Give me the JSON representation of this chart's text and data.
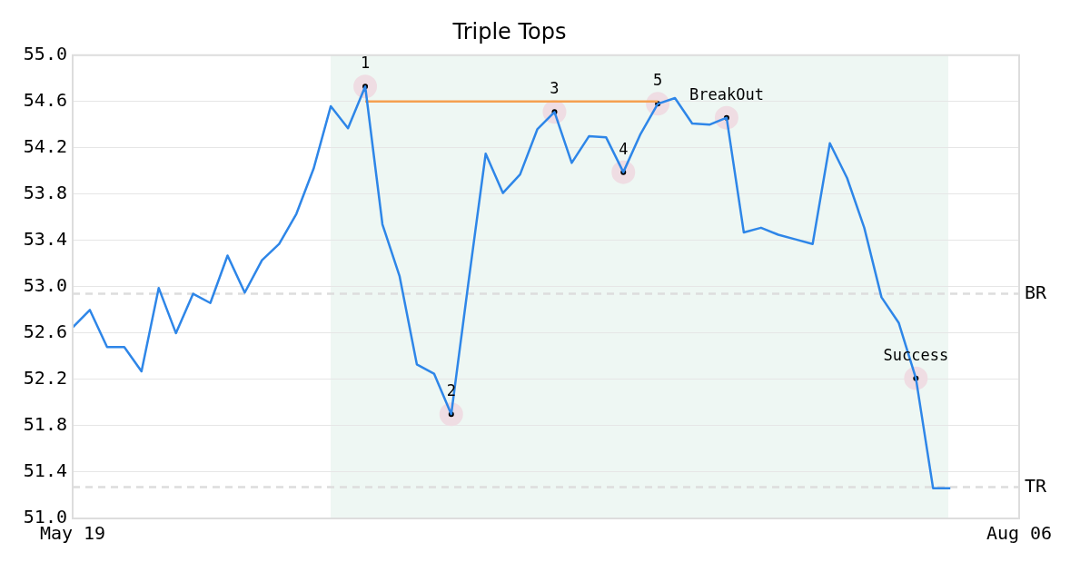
{
  "chart_data": {
    "type": "line",
    "title": "Triple Tops",
    "categories": [
      "May 19",
      null,
      null,
      null,
      null,
      null,
      null,
      null,
      null,
      null,
      null,
      null,
      null,
      null,
      null,
      null,
      null,
      null,
      null,
      null,
      null,
      null,
      null,
      null,
      null,
      null,
      null,
      null,
      null,
      null,
      null,
      null,
      null,
      null,
      null,
      null,
      null,
      null,
      null,
      null,
      null,
      null,
      null,
      null,
      null,
      null,
      null,
      null,
      null,
      null,
      null,
      null,
      null,
      null,
      null,
      "Aug 06"
    ],
    "series": [
      {
        "color": "#2e86e8",
        "values": [
          52.65,
          52.8,
          52.48,
          52.48,
          52.27,
          52.99,
          52.6,
          52.94,
          52.86,
          53.27,
          52.95,
          53.23,
          53.37,
          53.63,
          54.02,
          54.56,
          54.37,
          54.73,
          53.54,
          53.09,
          52.33,
          52.25,
          51.9,
          53.04,
          54.15,
          53.81,
          53.97,
          54.36,
          54.51,
          54.07,
          54.3,
          54.29,
          53.99,
          54.32,
          54.58,
          54.63,
          54.41,
          54.4,
          54.46,
          53.47,
          53.51,
          53.45,
          53.41,
          53.37,
          54.24,
          53.94,
          53.51,
          52.91,
          52.69,
          52.21,
          51.26,
          51.26,
          null,
          null,
          null,
          null
        ]
      },
      {
        "color": "#f5a050",
        "values": [
          null,
          null,
          null,
          null,
          null,
          null,
          null,
          null,
          null,
          null,
          null,
          null,
          null,
          null,
          null,
          null,
          null,
          54.6,
          null,
          null,
          null,
          null,
          null,
          null,
          null,
          null,
          null,
          null,
          null,
          null,
          null,
          null,
          null,
          null,
          54.6,
          null,
          null,
          null,
          null,
          null,
          null,
          null,
          null,
          null,
          null,
          null,
          null,
          null,
          null,
          null,
          null,
          null,
          null,
          null,
          null,
          null
        ]
      },
      {
        "type": "scatter",
        "color": "#000000",
        "values": [
          null,
          null,
          null,
          null,
          null,
          null,
          null,
          null,
          null,
          null,
          null,
          null,
          null,
          null,
          null,
          null,
          null,
          54.73,
          null,
          null,
          null,
          null,
          51.9,
          null,
          null,
          null,
          null,
          null,
          54.51,
          null,
          null,
          null,
          53.99,
          null,
          54.58,
          null,
          null,
          null,
          54.46,
          null,
          null,
          null,
          null,
          null,
          null,
          null,
          null,
          null,
          null,
          52.21,
          null,
          null,
          null,
          null,
          null,
          null
        ]
      }
    ],
    "annotations": [
      {
        "text": "1",
        "y": 54.73
      },
      {
        "text": "2",
        "y": 51.9
      },
      {
        "text": "3",
        "y": 54.51
      },
      {
        "text": "4",
        "y": 53.99
      },
      {
        "text": "5",
        "y": 54.58
      },
      {
        "text": "BreakOut",
        "y": 54.46
      },
      {
        "text": "Success",
        "y": 52.21
      }
    ],
    "ylim": [
      51,
      55
    ],
    "yticks": [
      {
        "value": 51,
        "label": "51.0"
      },
      {
        "value": 51.4,
        "label": "51.4"
      },
      {
        "value": 51.8,
        "label": "51.8"
      },
      {
        "value": 52.2,
        "label": "52.2"
      },
      {
        "value": 52.6,
        "label": "52.6"
      },
      {
        "value": 53,
        "label": "53.0"
      },
      {
        "value": 53.4,
        "label": "53.4"
      },
      {
        "value": 53.8,
        "label": "53.8"
      },
      {
        "value": 54.2,
        "label": "54.2"
      },
      {
        "value": 54.6,
        "label": "54.6"
      },
      {
        "value": 55,
        "label": "55.0"
      }
    ],
    "ref_lines": [
      {
        "axis": "y",
        "value": 52.94,
        "label": "BR",
        "color": "#dddddd",
        "line_style": "dashed"
      },
      {
        "axis": "y",
        "value": 51.27,
        "label": "TR",
        "color": "#dddddd",
        "line_style": "dashed"
      }
    ],
    "grid": "y",
    "legend": false
  }
}
